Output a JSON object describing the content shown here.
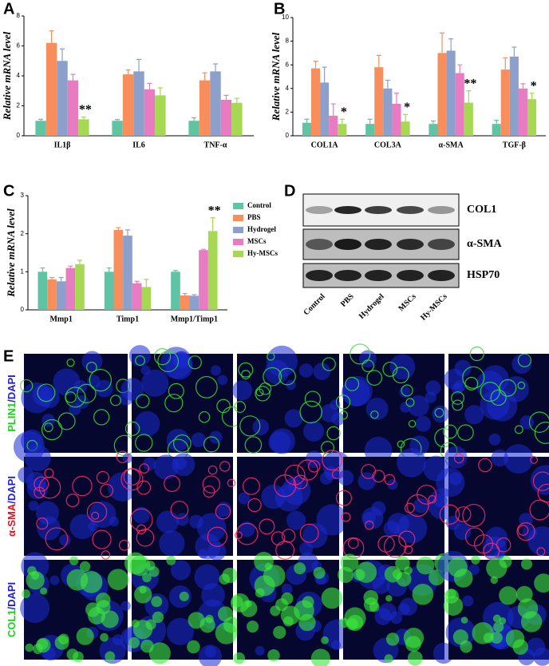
{
  "chart_data": [
    {
      "type": "bar",
      "label": "A",
      "y_label": "Relative mRNA level",
      "categories": [
        "IL1β",
        "IL6",
        "TNF-α"
      ],
      "ylim": [
        0,
        8
      ],
      "yticks": [
        0,
        2,
        4,
        6,
        8
      ],
      "series": [
        {
          "color": "#5fc4a3",
          "values": [
            1.0,
            1.0,
            1.0
          ],
          "errors": [
            0.1,
            0.08,
            0.2
          ]
        },
        {
          "color": "#f78e5c",
          "values": [
            6.2,
            4.1,
            3.7
          ],
          "errors": [
            0.8,
            0.3,
            0.5
          ]
        },
        {
          "color": "#8da0cb",
          "values": [
            5.0,
            4.3,
            4.3
          ],
          "errors": [
            0.8,
            0.8,
            0.5
          ]
        },
        {
          "color": "#e87bc1",
          "values": [
            3.7,
            3.1,
            2.4
          ],
          "errors": [
            0.4,
            0.4,
            0.3
          ]
        },
        {
          "color": "#a6d854",
          "values": [
            1.1,
            2.7,
            2.2
          ],
          "errors": [
            0.15,
            0.5,
            0.3
          ]
        }
      ],
      "annotations": [
        {
          "text": "**",
          "category": "IL1β"
        }
      ]
    },
    {
      "type": "bar",
      "label": "B",
      "y_label": "Relative mRNA level",
      "categories": [
        "COL1A",
        "COL3A",
        "α-SMA",
        "TGF-β"
      ],
      "ylim": [
        0,
        10
      ],
      "yticks": [
        0,
        2,
        4,
        6,
        8,
        10
      ],
      "series": [
        {
          "color": "#5fc4a3",
          "values": [
            1.1,
            1.0,
            1.0,
            1.0
          ],
          "errors": [
            0.3,
            0.4,
            0.25,
            0.3
          ]
        },
        {
          "color": "#f78e5c",
          "values": [
            5.7,
            5.8,
            7.0,
            5.6
          ],
          "errors": [
            0.6,
            1.0,
            1.7,
            1.0
          ]
        },
        {
          "color": "#8da0cb",
          "values": [
            4.5,
            4.0,
            7.2,
            6.7
          ],
          "errors": [
            1.3,
            0.7,
            1.0,
            0.8
          ]
        },
        {
          "color": "#e87bc1",
          "values": [
            1.7,
            2.7,
            5.3,
            4.0
          ],
          "errors": [
            1.0,
            0.9,
            0.7,
            0.4
          ]
        },
        {
          "color": "#a6d854",
          "values": [
            1.0,
            1.2,
            2.8,
            3.1
          ],
          "errors": [
            0.4,
            0.6,
            1.0,
            0.5
          ]
        }
      ],
      "annotations": [
        {
          "text": "*",
          "category": "COL1A"
        },
        {
          "text": "*",
          "category": "COL3A"
        },
        {
          "text": "**",
          "category": "α-SMA"
        },
        {
          "text": "*",
          "category": "TGF-β"
        }
      ]
    },
    {
      "type": "bar",
      "label": "C",
      "y_label": "Relative mRNA level",
      "categories": [
        "Mmp1",
        "Timp1",
        "Mmp1/Timp1"
      ],
      "ylim": [
        0,
        3
      ],
      "yticks": [
        0,
        1,
        2,
        3
      ],
      "series": [
        {
          "name": "Control",
          "color": "#5fc4a3",
          "values": [
            1.0,
            1.0,
            1.0
          ],
          "errors": [
            0.1,
            0.1,
            0.03
          ]
        },
        {
          "name": "PBS",
          "color": "#f78e5c",
          "values": [
            0.8,
            2.1,
            0.38
          ],
          "errors": [
            0.05,
            0.06,
            0.05
          ]
        },
        {
          "name": "Hydrogel",
          "color": "#8da0cb",
          "values": [
            0.75,
            1.95,
            0.37
          ],
          "errors": [
            0.1,
            0.15,
            0.03
          ]
        },
        {
          "name": "MSCs",
          "color": "#e87bc1",
          "values": [
            1.1,
            0.7,
            1.57
          ],
          "errors": [
            0.05,
            0.05,
            0.02
          ]
        },
        {
          "name": "Hy-MSCs",
          "color": "#a6d854",
          "values": [
            1.2,
            0.6,
            2.07
          ],
          "errors": [
            0.1,
            0.2,
            0.35
          ]
        }
      ],
      "annotations": [
        {
          "text": "**",
          "category": "Mmp1/Timp1"
        }
      ]
    }
  ],
  "blot": {
    "label": "D",
    "proteins": [
      "COL1",
      "α-SMA",
      "HSP70"
    ],
    "lanes": [
      "Control",
      "PBS",
      "Hydrogel",
      "MSCs",
      "Hy-MSCs"
    ]
  },
  "images": {
    "label": "E",
    "rows": [
      {
        "parts": [
          {
            "text": "PLIN1",
            "color": "#1fd01f"
          },
          {
            "text": "/DAPI",
            "color": "#2020d8"
          }
        ]
      },
      {
        "parts": [
          {
            "text": "α-SMA",
            "color": "#e01020"
          },
          {
            "text": "/DAPI",
            "color": "#2020d8"
          }
        ]
      },
      {
        "parts": [
          {
            "text": "COL1",
            "color": "#1fd01f"
          },
          {
            "text": "/DAPI",
            "color": "#2020d8"
          }
        ]
      }
    ]
  }
}
